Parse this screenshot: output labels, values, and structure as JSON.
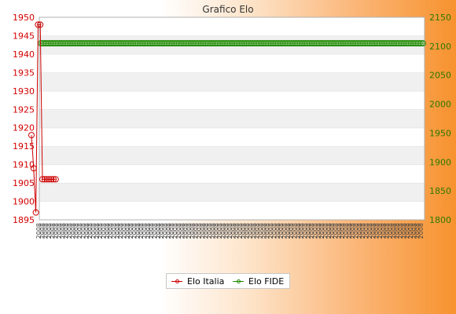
{
  "chart_data": {
    "type": "line",
    "title": "Grafico Elo",
    "xlabel": "",
    "ylabel": "",
    "y_left": {
      "min": 1895,
      "max": 1950,
      "step": 5,
      "color": "#d40000"
    },
    "y_right": {
      "min": 1800,
      "max": 2150,
      "step": 50,
      "color": "#2a7a00"
    },
    "grid": true,
    "legend_position": "bottom-center",
    "x_tick_label": "2008",
    "series": [
      {
        "name": "Elo Italia",
        "axis": "left",
        "color": "#cc0000",
        "values": [
          1918,
          1909,
          1897,
          1948,
          1948,
          1906,
          1906,
          1906,
          1906,
          1906,
          1906,
          1906
        ]
      },
      {
        "name": "Elo FIDE",
        "axis": "right",
        "color": "#1f8a00",
        "values": [
          2105,
          2105,
          2105,
          2105,
          2105,
          2105,
          2105,
          2105,
          2105,
          2105,
          2105,
          2105,
          2105,
          2105,
          2105,
          2105,
          2105,
          2105,
          2105,
          2105,
          2105,
          2105,
          2105,
          2105,
          2105,
          2105,
          2105,
          2105,
          2105,
          2105,
          2105,
          2105,
          2105,
          2105,
          2105,
          2105,
          2105,
          2105,
          2105,
          2105,
          2105,
          2105,
          2105,
          2105,
          2105,
          2105,
          2105,
          2105,
          2105,
          2105,
          2105,
          2105,
          2105,
          2105,
          2105,
          2105,
          2105,
          2105,
          2105,
          2105,
          2105,
          2105,
          2105,
          2105,
          2105,
          2105,
          2105,
          2105,
          2105,
          2105,
          2105,
          2105,
          2105,
          2105,
          2105,
          2105,
          2105,
          2105,
          2105,
          2105,
          2105,
          2105,
          2105,
          2105,
          2105,
          2105,
          2105,
          2105,
          2105,
          2105,
          2105,
          2105,
          2105,
          2105,
          2105,
          2105,
          2105,
          2105,
          2105,
          2105,
          2105,
          2105,
          2105,
          2105,
          2105,
          2105,
          2105,
          2105,
          2105,
          2105,
          2105,
          2105,
          2105,
          2105,
          2105,
          2105,
          2105,
          2105,
          2105,
          2105,
          2105,
          2105,
          2105,
          2105,
          2105,
          2105,
          2105,
          2105,
          2105,
          2105,
          2105,
          2105,
          2105,
          2105,
          2105,
          2105,
          2105,
          2105,
          2105,
          2105,
          2105,
          2105,
          2105,
          2105,
          2105,
          2105,
          2105,
          2105,
          2105,
          2105,
          2105,
          2105,
          2105,
          2105,
          2105,
          2105,
          2105,
          2105,
          2105,
          2105,
          2105,
          2105,
          2105,
          2105,
          2105,
          2105,
          2105,
          2105,
          2105,
          2105,
          2105,
          2105,
          2105,
          2105,
          2105,
          2105,
          2105,
          2105,
          2105,
          2105,
          2105,
          2105,
          2105,
          2105,
          2105,
          2105,
          2105,
          2105,
          2105,
          2105,
          2105,
          2105,
          2105,
          2105,
          2105,
          2105,
          2105,
          2105,
          2105,
          2105,
          2105,
          2105,
          2105,
          2105,
          2105,
          2105,
          2105,
          2105,
          2105,
          2105,
          2105,
          2105,
          2105,
          2105,
          2105,
          2105,
          2105,
          2105,
          2105,
          2105,
          2105,
          2105,
          2105,
          2105,
          2105
        ]
      }
    ]
  }
}
